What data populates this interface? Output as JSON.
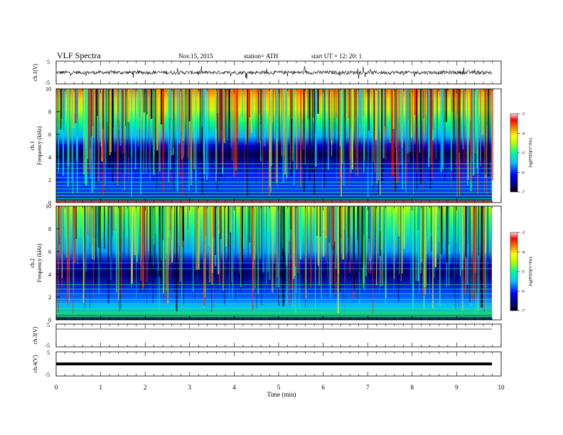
{
  "header": {
    "title": "VLF Spectra",
    "date": "Nov.15, 2015",
    "station": "station= ATH",
    "start": "start UT = 12: 20: 1"
  },
  "chart_data": [
    {
      "type": "line",
      "panel": "ch1-waveform",
      "ylabel": "ch.1(V)",
      "ylim": [
        -5,
        5
      ],
      "yticks": [
        "5",
        "-5"
      ],
      "xlim": [
        0,
        10
      ],
      "style": "dense noisy waveform, amplitude roughly ±1 V around 0"
    },
    {
      "type": "heatmap",
      "panel": "ch1-spectrogram",
      "ylabel": "ch.1 Frequency (kHz)",
      "ylim": [
        0,
        10
      ],
      "yticks": [
        "0",
        "2",
        "4",
        "6",
        "8",
        "10"
      ],
      "xlim": [
        0,
        10
      ],
      "colorbar": {
        "label": "log(PSD)(V²/Hz)",
        "range": [
          -7,
          -3
        ],
        "ticks": [
          "-3",
          "-4",
          "-5",
          "-6",
          "-7"
        ]
      },
      "description_levels": [
        {
          "freq_range_khz": [
            0,
            0.5
          ],
          "logpsd": -4.5
        },
        {
          "freq_range_khz": [
            0.5,
            3.5
          ],
          "logpsd": -6.3
        },
        {
          "freq_range_khz": [
            3.5,
            5.5
          ],
          "logpsd": -6.7
        },
        {
          "freq_range_khz": [
            5.5,
            7.5
          ],
          "logpsd": -5.5
        },
        {
          "freq_range_khz": [
            7.5,
            10
          ],
          "logpsd": -4.2
        }
      ]
    },
    {
      "type": "heatmap",
      "panel": "ch2-spectrogram",
      "ylabel": "ch.2 Frequency (kHz)",
      "ylim": [
        0,
        10
      ],
      "yticks": [
        "0",
        "2",
        "4",
        "6",
        "8",
        "10"
      ],
      "xlim": [
        0,
        10
      ],
      "colorbar": {
        "label": "log(PSD)(V²/Hz)",
        "range": [
          -7,
          -3
        ],
        "ticks": [
          "-3",
          "-4",
          "-5",
          "-6",
          "-7"
        ]
      },
      "description_levels": [
        {
          "freq_range_khz": [
            0,
            1
          ],
          "logpsd": -5.0
        },
        {
          "freq_range_khz": [
            1,
            2.8
          ],
          "logpsd": -6.2
        },
        {
          "freq_range_khz": [
            2.8,
            5
          ],
          "logpsd": -6.8
        },
        {
          "freq_range_khz": [
            5,
            7
          ],
          "logpsd": -5.8
        },
        {
          "freq_range_khz": [
            7,
            10
          ],
          "logpsd": -4.8
        }
      ]
    },
    {
      "type": "line",
      "panel": "ch3-waveform",
      "ylabel": "ch.3(V)",
      "ylim": [
        -5,
        5
      ],
      "yticks": [
        "5",
        "-5"
      ],
      "xlim": [
        0,
        10
      ],
      "style": "flat thin line near +4 V"
    },
    {
      "type": "line",
      "panel": "ch4-waveform",
      "ylabel": "ch.4(V)",
      "ylim": [
        -5,
        5
      ],
      "yticks": [
        "5",
        "-5"
      ],
      "xlim": [
        0,
        10
      ],
      "style": "thick flat line near 0 V"
    }
  ],
  "xaxis": {
    "label": "Time (min)",
    "ticks": [
      "0",
      "1",
      "2",
      "3",
      "4",
      "5",
      "6",
      "7",
      "8",
      "9",
      "10"
    ]
  },
  "colors": {
    "scale": [
      "#000040",
      "#0000ff",
      "#00c8ff",
      "#00ff80",
      "#ffff00",
      "#ff8000",
      "#ff0000",
      "#ffffff"
    ]
  }
}
